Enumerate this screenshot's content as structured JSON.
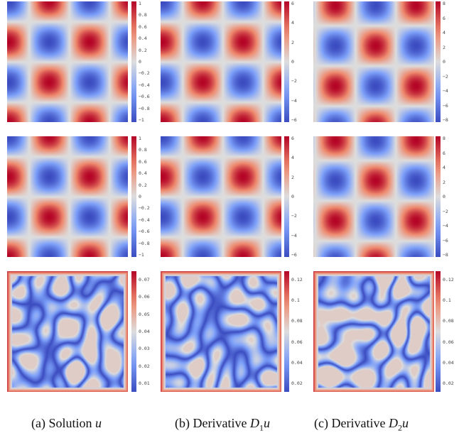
{
  "figure": {
    "rows": [
      {
        "panels": [
          {
            "name": "sol-u",
            "kind": "wave",
            "kx": 1,
            "ky": 0,
            "colorbar": [
              "1",
              "0.8",
              "0.6",
              "0.4",
              "0.2",
              "0",
              "−0.2",
              "−0.4",
              "−0.6",
              "−0.8",
              "−1"
            ]
          },
          {
            "name": "d1u",
            "kind": "wave",
            "kx": 1,
            "ky": 0,
            "colorbar": [
              "6",
              "4",
              "2",
              "0",
              "−2",
              "−4",
              "−6"
            ]
          },
          {
            "name": "d2u",
            "kind": "wave",
            "kx": 0,
            "ky": 1,
            "colorbar": [
              "8",
              "6",
              "4",
              "2",
              "0",
              "−2",
              "−4",
              "−6",
              "−8"
            ]
          }
        ]
      },
      {
        "panels": [
          {
            "name": "sol-u",
            "kind": "wave",
            "kx": 1,
            "ky": 0,
            "colorbar": [
              "1",
              "0.8",
              "0.6",
              "0.4",
              "0.2",
              "0",
              "−0.2",
              "−0.4",
              "−0.6",
              "−0.8",
              "−1"
            ]
          },
          {
            "name": "d1u",
            "kind": "wave",
            "kx": 1,
            "ky": 0,
            "colorbar": [
              "6",
              "4",
              "2",
              "0",
              "−2",
              "−4",
              "−6"
            ]
          },
          {
            "name": "d2u",
            "kind": "wave",
            "kx": 0,
            "ky": 1,
            "colorbar": [
              "8",
              "6",
              "4",
              "2",
              "0",
              "−2",
              "−4",
              "−6",
              "−8"
            ]
          }
        ]
      },
      {
        "panels": [
          {
            "name": "err-u",
            "kind": "error",
            "colorbar": [
              "0.07",
              "0.06",
              "0.05",
              "0.04",
              "0.03",
              "0.02",
              "0.01"
            ]
          },
          {
            "name": "err-d1u",
            "kind": "error",
            "colorbar": [
              "0.12",
              "0.1",
              "0.08",
              "0.06",
              "0.04",
              "0.02"
            ]
          },
          {
            "name": "err-d2u",
            "kind": "error",
            "colorbar": [
              "0.12",
              "0.1",
              "0.08",
              "0.06",
              "0.04",
              "0.02"
            ]
          }
        ]
      }
    ],
    "captions": [
      {
        "label": "(a) Solution",
        "math": "u",
        "sub": ""
      },
      {
        "label": "(b) Derivative",
        "math": "D",
        "sub": "1",
        "tail": "u"
      },
      {
        "label": "(c) Derivative",
        "math": "D",
        "sub": "2",
        "tail": "u"
      }
    ]
  }
}
